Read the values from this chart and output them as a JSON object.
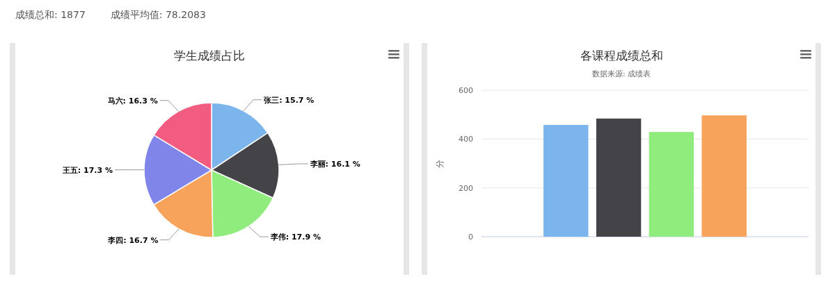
{
  "chart_data": [
    {
      "type": "other",
      "annotations": [
        "成绩总和: 1877",
        "成绩平均值: 78.2083"
      ]
    },
    {
      "type": "pie",
      "title": "学生成绩占比",
      "categories": [
        "张三",
        "李丽",
        "李伟",
        "李四",
        "王五",
        "马六"
      ],
      "values": [
        15.7,
        16.1,
        17.9,
        16.7,
        17.3,
        16.3
      ],
      "colors": [
        "#7cb5ec",
        "#434348",
        "#90ed7d",
        "#f7a35c",
        "#8085e9",
        "#f15c80"
      ],
      "value_labels": [
        ": 15.7 %",
        ": 16.1 %",
        ": 17.9 %",
        ": 16.7 %",
        ": 17.3 %",
        ": 16.3 %"
      ]
    },
    {
      "type": "bar",
      "title": "各课程成绩总和",
      "subtitle": "数据来源: 成绩表",
      "ylabel": "分",
      "categories": [
        null,
        null,
        null,
        null,
        null,
        null
      ],
      "values": [
        null,
        458,
        484,
        429,
        497,
        null
      ],
      "colors": [
        null,
        "#7cb5ec",
        "#434348",
        "#90ed7d",
        "#f7a35c",
        null
      ],
      "ylim": [
        0,
        600
      ],
      "yticks": [
        0,
        200,
        400,
        600
      ],
      "grid": "y"
    }
  ]
}
